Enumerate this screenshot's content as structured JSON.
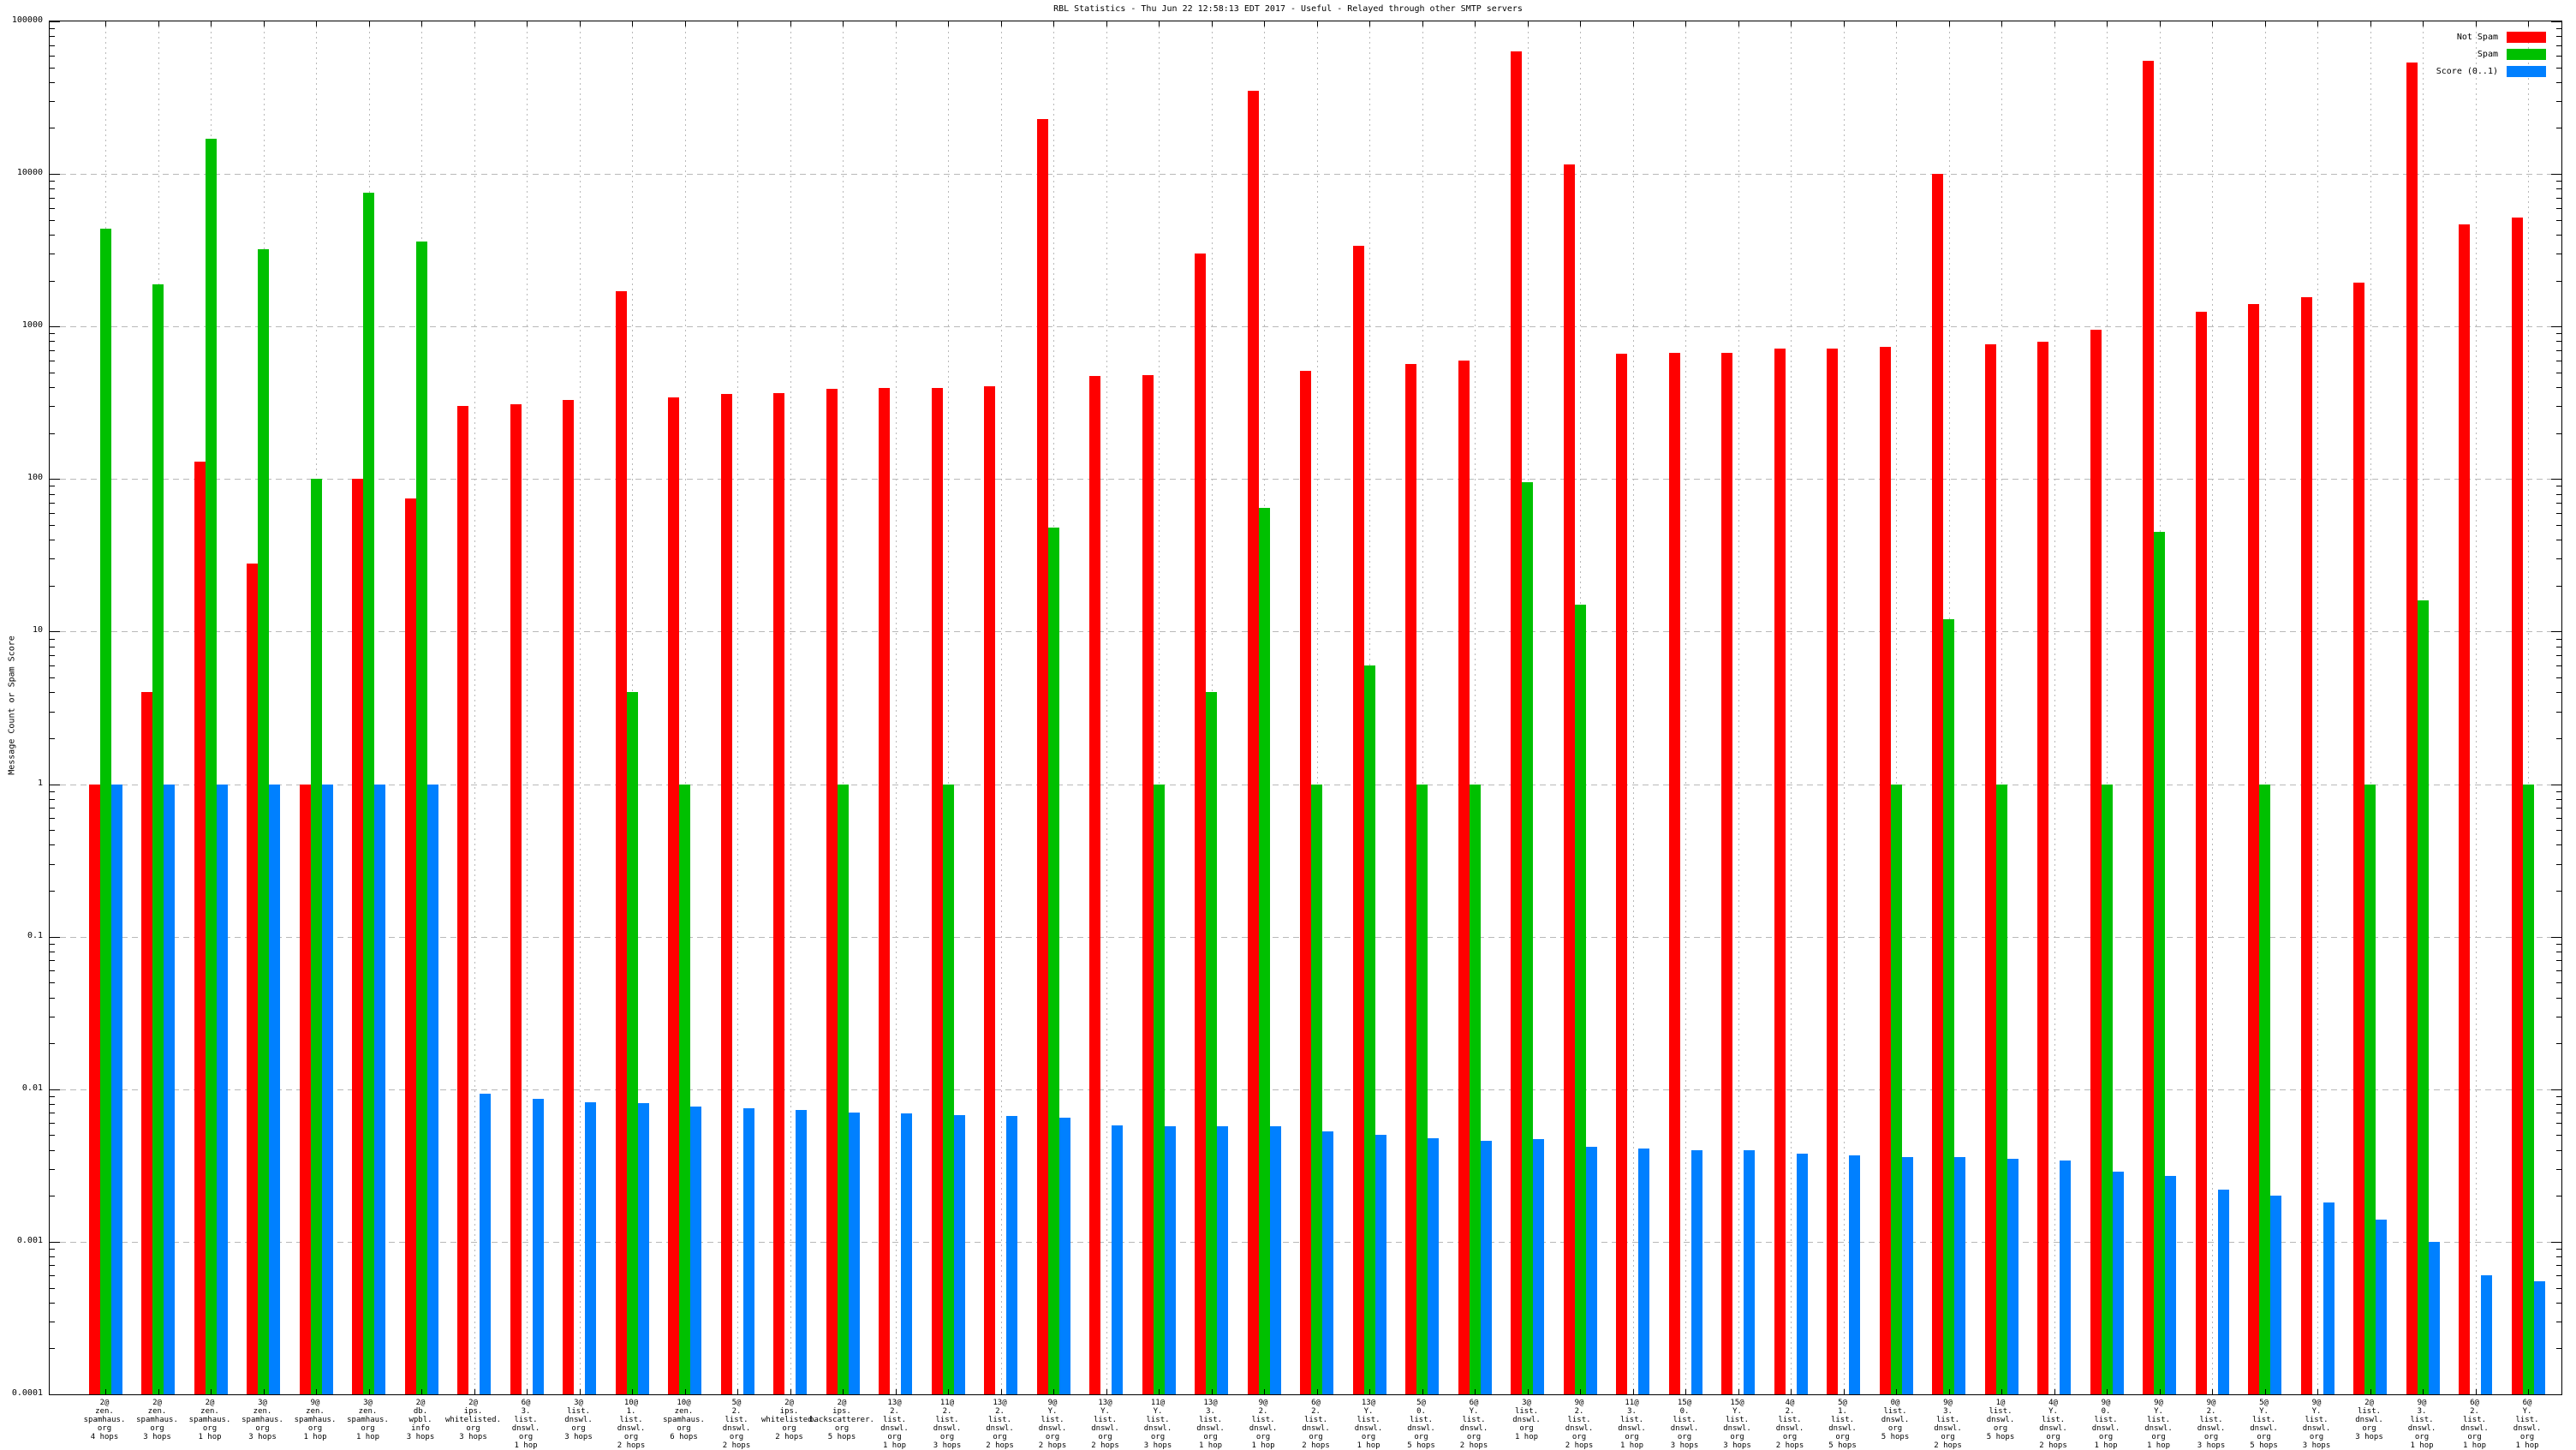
{
  "chart_data": {
    "type": "bar",
    "title": "RBL Statistics - Thu Jun 22 12:58:13 EDT 2017 - Useful - Relayed through other SMTP servers",
    "ylabel": "Message Count or Spam Score",
    "yscale": "log10",
    "ylim": [
      0.0001,
      100000
    ],
    "ytick_labels": [
      "100000",
      "10000",
      "1000",
      "100",
      "10",
      "1",
      "0.1",
      "0.01",
      "0.001",
      "0.0001"
    ],
    "grid": "on",
    "legend_position": "top-right",
    "legend": [
      {
        "label": "Not Spam",
        "color": "#ff0000"
      },
      {
        "label": "Spam",
        "color": "#00c000"
      },
      {
        "label": "Score (0..1)",
        "color": "#0080ff"
      }
    ],
    "series_names": [
      "Not Spam",
      "Spam",
      "Score (0..1)"
    ],
    "groups": [
      {
        "count": "2@",
        "domain": "zen.spamhaus.org",
        "hops": "4 hops",
        "not_spam": 1,
        "spam": 4400,
        "score": 1
      },
      {
        "count": "2@",
        "domain": "zen.spamhaus.org",
        "hops": "3 hops",
        "not_spam": 4,
        "spam": 1900,
        "score": 1
      },
      {
        "count": "2@",
        "domain": "zen.spamhaus.org",
        "hops": "1 hop",
        "not_spam": 130,
        "spam": 17000,
        "score": 1
      },
      {
        "count": "3@",
        "domain": "zen.spamhaus.org",
        "hops": "3 hops",
        "not_spam": 28,
        "spam": 3200,
        "score": 1
      },
      {
        "count": "9@",
        "domain": "zen.spamhaus.org",
        "hops": "1 hop",
        "not_spam": 1,
        "spam": 100,
        "score": 1
      },
      {
        "count": "3@",
        "domain": "zen.spamhaus.org",
        "hops": "1 hop",
        "not_spam": 100,
        "spam": 7500,
        "score": 1
      },
      {
        "count": "2@",
        "domain": "db.wpbl.info",
        "hops": "3 hops",
        "not_spam": 75,
        "spam": 3600,
        "score": 1
      },
      {
        "count": "2@",
        "domain": "ips.whitelisted.org",
        "hops": "3 hops",
        "not_spam": 300,
        "spam": 0,
        "score": 0.0094
      },
      {
        "count": "6@",
        "domain": "3.list.dnswl.org",
        "hops": "1 hop",
        "not_spam": 310,
        "spam": 0,
        "score": 0.0087
      },
      {
        "count": "3@",
        "domain": "list.dnswl.org",
        "hops": "3 hops",
        "not_spam": 330,
        "spam": 0,
        "score": 0.0082
      },
      {
        "count": "10@",
        "domain": "1.list.dnswl.org",
        "hops": "2 hops",
        "not_spam": 1700,
        "spam": 4,
        "score": 0.0081
      },
      {
        "count": "10@",
        "domain": "zen.spamhaus.org",
        "hops": "6 hops",
        "not_spam": 345,
        "spam": 1,
        "score": 0.0077
      },
      {
        "count": "5@",
        "domain": "2.list.dnswl.org",
        "hops": "2 hops",
        "not_spam": 360,
        "spam": 0,
        "score": 0.0075
      },
      {
        "count": "2@",
        "domain": "ips.whitelisted.org",
        "hops": "2 hops",
        "not_spam": 365,
        "spam": 0,
        "score": 0.0073
      },
      {
        "count": "2@",
        "domain": "ips.backscatterer.org",
        "hops": "5 hops",
        "not_spam": 390,
        "spam": 1,
        "score": 0.007
      },
      {
        "count": "13@",
        "domain": "2.list.dnswl.org",
        "hops": "1 hop",
        "not_spam": 395,
        "spam": 0,
        "score": 0.0069
      },
      {
        "count": "11@",
        "domain": "2.list.dnswl.org",
        "hops": "3 hops",
        "not_spam": 395,
        "spam": 1,
        "score": 0.0068
      },
      {
        "count": "13@",
        "domain": "2.list.dnswl.org",
        "hops": "2 hops",
        "not_spam": 405,
        "spam": 0,
        "score": 0.0067
      },
      {
        "count": "9@",
        "domain": "Y.list.dnswl.org",
        "hops": "2 hops",
        "not_spam": 23000,
        "spam": 48,
        "score": 0.0065
      },
      {
        "count": "13@",
        "domain": "Y.list.dnswl.org",
        "hops": "2 hops",
        "not_spam": 475,
        "spam": 0,
        "score": 0.0058
      },
      {
        "count": "11@",
        "domain": "Y.list.dnswl.org",
        "hops": "3 hops",
        "not_spam": 480,
        "spam": 1,
        "score": 0.0057
      },
      {
        "count": "13@",
        "domain": "3.list.dnswl.org",
        "hops": "1 hop",
        "not_spam": 3000,
        "spam": 4,
        "score": 0.0057
      },
      {
        "count": "9@",
        "domain": "2.list.dnswl.org",
        "hops": "1 hop",
        "not_spam": 35000,
        "spam": 65,
        "score": 0.0057
      },
      {
        "count": "6@",
        "domain": "2.list.dnswl.org",
        "hops": "2 hops",
        "not_spam": 510,
        "spam": 1,
        "score": 0.0053
      },
      {
        "count": "13@",
        "domain": "Y.list.dnswl.org",
        "hops": "1 hop",
        "not_spam": 3400,
        "spam": 6,
        "score": 0.005
      },
      {
        "count": "5@",
        "domain": "0.list.dnswl.org",
        "hops": "5 hops",
        "not_spam": 570,
        "spam": 1,
        "score": 0.0048
      },
      {
        "count": "6@",
        "domain": "Y.list.dnswl.org",
        "hops": "2 hops",
        "not_spam": 595,
        "spam": 1,
        "score": 0.0046
      },
      {
        "count": "3@",
        "domain": "list.dnswl.org",
        "hops": "1 hop",
        "not_spam": 64000,
        "spam": 95,
        "score": 0.0047
      },
      {
        "count": "9@",
        "domain": "2.list.dnswl.org",
        "hops": "2 hops",
        "not_spam": 11500,
        "spam": 15,
        "score": 0.0042
      },
      {
        "count": "11@",
        "domain": "3.list.dnswl.org",
        "hops": "1 hop",
        "not_spam": 660,
        "spam": 0,
        "score": 0.0041
      },
      {
        "count": "15@",
        "domain": "0.list.dnswl.org",
        "hops": "3 hops",
        "not_spam": 670,
        "spam": 0,
        "score": 0.004
      },
      {
        "count": "15@",
        "domain": "Y.list.dnswl.org",
        "hops": "3 hops",
        "not_spam": 675,
        "spam": 0,
        "score": 0.004
      },
      {
        "count": "4@",
        "domain": "2.list.dnswl.org",
        "hops": "2 hops",
        "not_spam": 715,
        "spam": 0,
        "score": 0.0038
      },
      {
        "count": "5@",
        "domain": "1.list.dnswl.org",
        "hops": "5 hops",
        "not_spam": 720,
        "spam": 0,
        "score": 0.0037
      },
      {
        "count": "0@",
        "domain": "list.dnswl.org",
        "hops": "5 hops",
        "not_spam": 740,
        "spam": 1,
        "score": 0.0036
      },
      {
        "count": "9@",
        "domain": "3.list.dnswl.org",
        "hops": "2 hops",
        "not_spam": 10000,
        "spam": 12,
        "score": 0.0036
      },
      {
        "count": "1@",
        "domain": "list.dnswl.org",
        "hops": "5 hops",
        "not_spam": 760,
        "spam": 1,
        "score": 0.0035
      },
      {
        "count": "4@",
        "domain": "Y.list.dnswl.org",
        "hops": "2 hops",
        "not_spam": 790,
        "spam": 0,
        "score": 0.0034
      },
      {
        "count": "9@",
        "domain": "0.list.dnswl.org",
        "hops": "1 hop",
        "not_spam": 950,
        "spam": 1,
        "score": 0.0029
      },
      {
        "count": "9@",
        "domain": "Y.list.dnswl.org",
        "hops": "1 hop",
        "not_spam": 55000,
        "spam": 45,
        "score": 0.0027
      },
      {
        "count": "9@",
        "domain": "2.list.dnswl.org",
        "hops": "3 hops",
        "not_spam": 1250,
        "spam": 0,
        "score": 0.0022
      },
      {
        "count": "5@",
        "domain": "Y.list.dnswl.org",
        "hops": "5 hops",
        "not_spam": 1400,
        "spam": 1,
        "score": 0.002
      },
      {
        "count": "9@",
        "domain": "Y.list.dnswl.org",
        "hops": "3 hops",
        "not_spam": 1550,
        "spam": 0,
        "score": 0.0018
      },
      {
        "count": "2@",
        "domain": "list.dnswl.org",
        "hops": "3 hops",
        "not_spam": 1950,
        "spam": 1,
        "score": 0.0014
      },
      {
        "count": "9@",
        "domain": "3.list.dnswl.org",
        "hops": "1 hop",
        "not_spam": 54000,
        "spam": 16,
        "score": 0.001
      },
      {
        "count": "6@",
        "domain": "2.list.dnswl.org",
        "hops": "1 hop",
        "not_spam": 4700,
        "spam": 0,
        "score": 0.0006
      },
      {
        "count": "6@",
        "domain": "Y.list.dnswl.org",
        "hops": "1 hop",
        "not_spam": 5200,
        "spam": 1,
        "score": 0.00055
      }
    ]
  }
}
